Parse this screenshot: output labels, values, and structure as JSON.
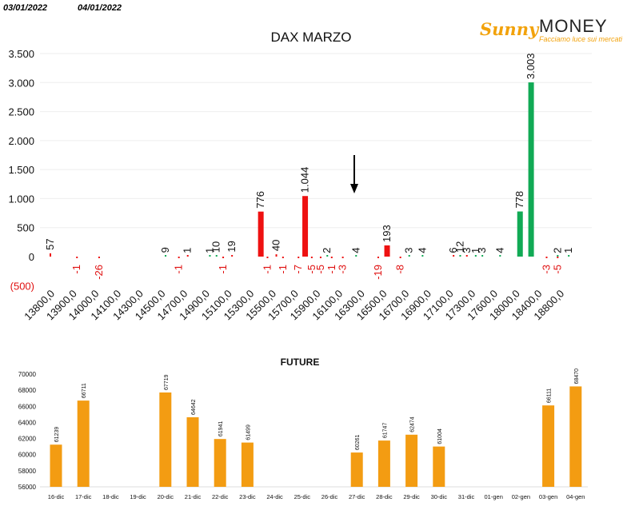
{
  "header": {
    "date_left": "03/01/2022",
    "date_right": "04/01/2022"
  },
  "logo": {
    "sunny": "Sunny",
    "money": "MONEY",
    "tagline": "Facciamo luce sui mercati"
  },
  "colors": {
    "negative": "#ee1111",
    "positive": "#11aa55",
    "future_bar": "#f39c12",
    "arrow": "#000000",
    "neg_label": "#e01010"
  },
  "chart_data": [
    {
      "type": "bar",
      "title": "DAX MARZO",
      "ylim": [
        -500,
        3500
      ],
      "yticks": [
        -500,
        0,
        500,
        1000,
        1500,
        2000,
        2500,
        3000,
        3500
      ],
      "ytick_labels": [
        "(500)",
        "0",
        "500",
        "1.000",
        "1.500",
        "2.000",
        "2.500",
        "3.000",
        "3.500"
      ],
      "categories": [
        "13800,0",
        "13900,0",
        "14000,0",
        "14100,0",
        "14300,0",
        "14500,0",
        "14700,0",
        "14900,0",
        "15100,0",
        "15300,0",
        "15500,0",
        "15700,0",
        "15900,0",
        "16100,0",
        "16300,0",
        "16500,0",
        "16700,0",
        "16900,0",
        "17100,0",
        "17300,0",
        "17600,0",
        "18000,0",
        "18400,0",
        "18800,0"
      ],
      "series": [
        {
          "color": "red",
          "points": [
            {
              "x": 0.0,
              "y": 57,
              "label": "57"
            },
            {
              "x": 1.2,
              "y": -1,
              "label": "-1"
            },
            {
              "x": 2.2,
              "y": -26,
              "label": "-26"
            },
            {
              "x": 5.8,
              "y": -1,
              "label": "-1"
            },
            {
              "x": 6.2,
              "y": 1,
              "label": "1"
            },
            {
              "x": 7.8,
              "y": -1,
              "label": "-1"
            },
            {
              "x": 8.2,
              "y": 19,
              "label": "19"
            },
            {
              "x": 9.8,
              "y": -1,
              "label": "-1"
            },
            {
              "x": 10.2,
              "y": 40,
              "label": "40"
            },
            {
              "x": 11.2,
              "y": -7,
              "label": "-7"
            },
            {
              "x": 11.5,
              "y": 1044,
              "label": "1.044"
            },
            {
              "x": 11.8,
              "y": -5,
              "label": "-5"
            },
            {
              "x": 12.2,
              "y": -5,
              "label": "-5"
            },
            {
              "x": 13.2,
              "y": -3,
              "label": "-3"
            },
            {
              "x": 14.8,
              "y": -19,
              "label": "-19"
            },
            {
              "x": 15.2,
              "y": 193,
              "label": "193"
            },
            {
              "x": 15.8,
              "y": -8,
              "label": "-8"
            },
            {
              "x": 18.2,
              "y": 6,
              "label": "6"
            },
            {
              "x": 18.8,
              "y": 3,
              "label": "3"
            },
            {
              "x": 22.4,
              "y": -3,
              "label": "-3"
            },
            {
              "x": 22.9,
              "y": -5,
              "label": "-5"
            },
            {
              "x": 9.5,
              "y": 776,
              "label": "776"
            },
            {
              "x": 12.7,
              "y": -1,
              "label": "-1"
            },
            {
              "x": 10.5,
              "y": -1,
              "label": "-1"
            }
          ]
        },
        {
          "color": "green",
          "points": [
            {
              "x": 5.2,
              "y": 9,
              "label": "9"
            },
            {
              "x": 7.2,
              "y": 1,
              "label": "1"
            },
            {
              "x": 7.5,
              "y": 10,
              "label": "10"
            },
            {
              "x": 12.5,
              "y": 2,
              "label": "2"
            },
            {
              "x": 13.8,
              "y": 4,
              "label": "4"
            },
            {
              "x": 16.2,
              "y": 3,
              "label": "3"
            },
            {
              "x": 16.8,
              "y": 4,
              "label": "4"
            },
            {
              "x": 18.5,
              "y": 12,
              "label": "12"
            },
            {
              "x": 19.2,
              "y": 1,
              "label": "1"
            },
            {
              "x": 19.5,
              "y": 3,
              "label": "3"
            },
            {
              "x": 20.3,
              "y": 4,
              "label": "4"
            },
            {
              "x": 21.2,
              "y": 778,
              "label": "778"
            },
            {
              "x": 21.7,
              "y": 3003,
              "label": "3.003"
            },
            {
              "x": 22.9,
              "y": 2,
              "label": "2"
            },
            {
              "x": 23.4,
              "y": 1,
              "label": "1"
            }
          ]
        }
      ]
    },
    {
      "type": "bar",
      "title": "FUTURE",
      "ylim": [
        56000,
        70000
      ],
      "yticks": [
        56000,
        58000,
        60000,
        62000,
        64000,
        66000,
        68000,
        70000
      ],
      "categories": [
        "16-dic",
        "17-dic",
        "18-dic",
        "19-dic",
        "20-dic",
        "21-dic",
        "22-dic",
        "23-dic",
        "24-dic",
        "25-dic",
        "26-dic",
        "27-dic",
        "28-dic",
        "29-dic",
        "30-dic",
        "31-dic",
        "01-gen",
        "02-gen",
        "03-gen",
        "04-gen"
      ],
      "values": [
        61239,
        66711,
        null,
        null,
        67719,
        64642,
        61941,
        61499,
        null,
        null,
        null,
        60261,
        61747,
        62474,
        61004,
        null,
        null,
        null,
        66111,
        68470
      ]
    }
  ]
}
